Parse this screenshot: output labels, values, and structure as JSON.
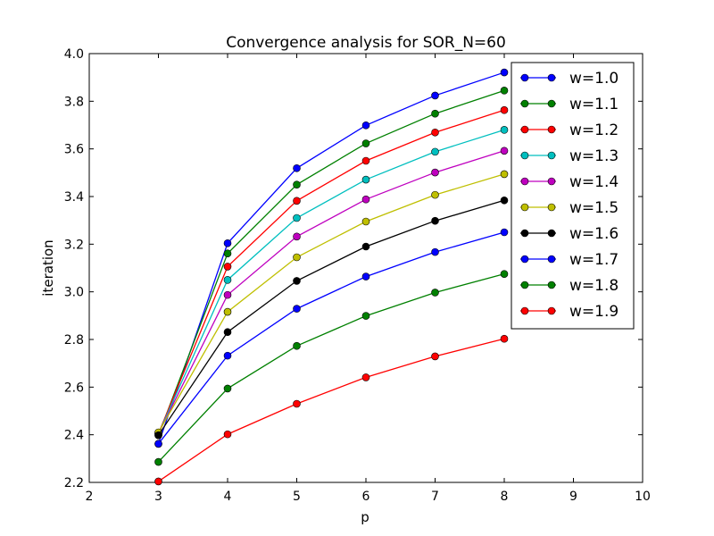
{
  "chart_data": {
    "type": "line",
    "title": "Convergence analysis for SOR_N=60",
    "xlabel": "p",
    "ylabel": "iteration",
    "xlim": [
      2,
      10
    ],
    "ylim": [
      2.2,
      4.0
    ],
    "xticks": [
      2,
      3,
      4,
      5,
      6,
      7,
      8,
      9,
      10
    ],
    "yticks": [
      2.2,
      2.4,
      2.6,
      2.8,
      3.0,
      3.2,
      3.4,
      3.6,
      3.8,
      4.0
    ],
    "xtick_labels": [
      "2",
      "3",
      "4",
      "5",
      "6",
      "7",
      "8",
      "9",
      "10"
    ],
    "ytick_labels": [
      "2.2",
      "2.4",
      "2.6",
      "2.8",
      "3.0",
      "3.2",
      "3.4",
      "3.6",
      "3.8",
      "4.0"
    ],
    "grid": false,
    "legend_position": "top-right",
    "marker": "circle",
    "x": [
      3,
      4,
      5,
      6,
      7,
      8
    ],
    "series": [
      {
        "name": "w=1.0",
        "color": "#0000ff",
        "values": [
          2.362,
          3.204,
          3.519,
          3.699,
          3.824,
          3.921
        ]
      },
      {
        "name": "w=1.1",
        "color": "#008000",
        "values": [
          2.398,
          3.161,
          3.45,
          3.623,
          3.748,
          3.845
        ]
      },
      {
        "name": "w=1.2",
        "color": "#ff0000",
        "values": [
          2.405,
          3.106,
          3.382,
          3.55,
          3.669,
          3.763
        ]
      },
      {
        "name": "w=1.3",
        "color": "#00bfbf",
        "values": [
          2.405,
          3.05,
          3.31,
          3.471,
          3.588,
          3.68
        ]
      },
      {
        "name": "w=1.4",
        "color": "#bf00bf",
        "values": [
          2.405,
          2.987,
          3.232,
          3.388,
          3.501,
          3.592
        ]
      },
      {
        "name": "w=1.5",
        "color": "#bfbf00",
        "values": [
          2.41,
          2.916,
          3.145,
          3.295,
          3.407,
          3.494
        ]
      },
      {
        "name": "w=1.6",
        "color": "#000000",
        "values": [
          2.398,
          2.831,
          3.046,
          3.19,
          3.298,
          3.384
        ]
      },
      {
        "name": "w=1.7",
        "color": "#0000ff",
        "values": [
          2.362,
          2.732,
          2.929,
          3.064,
          3.167,
          3.25
        ]
      },
      {
        "name": "w=1.8",
        "color": "#008000",
        "values": [
          2.286,
          2.594,
          2.773,
          2.899,
          2.997,
          3.075
        ]
      },
      {
        "name": "w=1.9",
        "color": "#ff0000",
        "values": [
          2.204,
          2.402,
          2.53,
          2.641,
          2.729,
          2.803
        ]
      }
    ]
  }
}
